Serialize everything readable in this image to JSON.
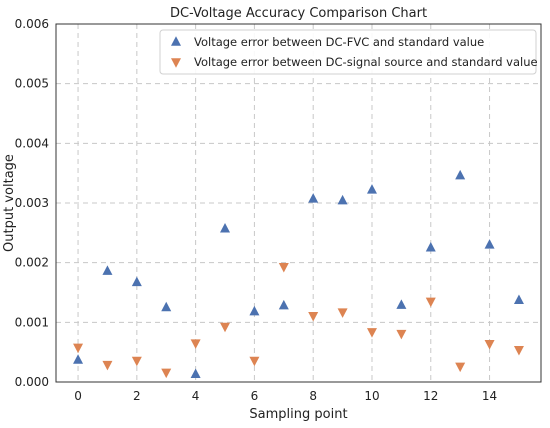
{
  "chart_data": {
    "type": "scatter",
    "title": "DC-Voltage Accuracy Comparison Chart",
    "xlabel": "Sampling point",
    "ylabel": "Output voltage",
    "xlim": [
      -0.75,
      15.75
    ],
    "ylim": [
      0,
      0.006
    ],
    "xticks": [
      0,
      2,
      4,
      6,
      8,
      10,
      12,
      14
    ],
    "xtick_labels": [
      "0",
      "2",
      "4",
      "6",
      "8",
      "10",
      "12",
      "14"
    ],
    "yticks": [
      0,
      0.001,
      0.002,
      0.003,
      0.004,
      0.005,
      0.006
    ],
    "ytick_labels": [
      "0.000",
      "0.001",
      "0.002",
      "0.003",
      "0.004",
      "0.005",
      "0.006"
    ],
    "grid": true,
    "legend_position": "top-right",
    "series": [
      {
        "name": "Voltage error between DC-FVC and standard value",
        "marker": "triangle-up",
        "color": "#4c72b0",
        "x": [
          0,
          1,
          2,
          3,
          4,
          5,
          6,
          7,
          8,
          9,
          10,
          11,
          12,
          13,
          14,
          15
        ],
        "y": [
          0.00037,
          0.00186,
          0.00167,
          0.00125,
          0.00013,
          0.00257,
          0.00118,
          0.00128,
          0.00307,
          0.00304,
          0.00322,
          0.00129,
          0.00225,
          0.00346,
          0.0023,
          0.00137
        ]
      },
      {
        "name": "Voltage error between DC-signal source and standard value",
        "marker": "triangle-down",
        "color": "#dd8452",
        "x": [
          0,
          1,
          2,
          3,
          4,
          5,
          6,
          7,
          8,
          9,
          10,
          11,
          12,
          13,
          14,
          15
        ],
        "y": [
          0.00058,
          0.00029,
          0.00036,
          0.00016,
          0.00065,
          0.00093,
          0.00036,
          0.00193,
          0.00111,
          0.00117,
          0.00084,
          0.00081,
          0.00135,
          0.00026,
          0.00064,
          0.00054
        ]
      }
    ]
  }
}
